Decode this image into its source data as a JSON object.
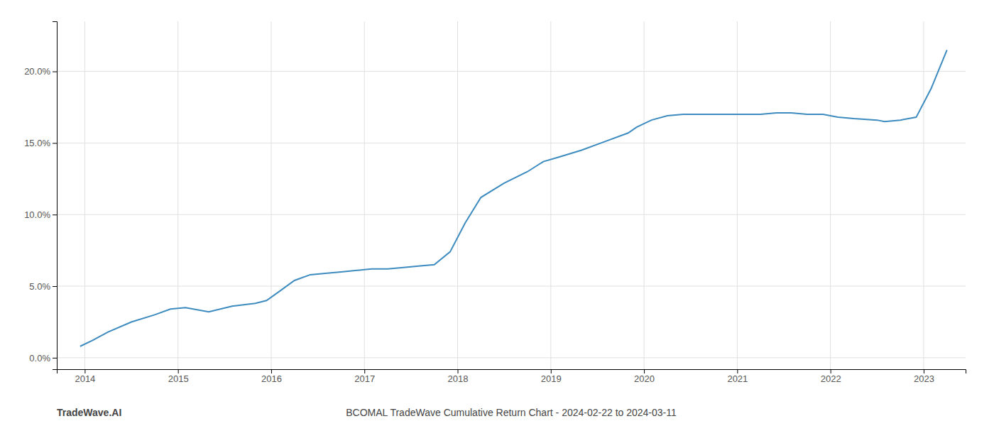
{
  "chart_data": {
    "type": "line",
    "title": "BCOMAL TradeWave Cumulative Return Chart - 2024-02-22 to 2024-03-11",
    "annotations": [
      "TradeWave.AI"
    ],
    "color": "#3d8bbf",
    "grid": true,
    "x": [
      2013.95,
      2014.08,
      2014.25,
      2014.5,
      2014.75,
      2014.92,
      2015.08,
      2015.33,
      2015.58,
      2015.83,
      2015.95,
      2016.08,
      2016.25,
      2016.42,
      2016.58,
      2016.75,
      2016.92,
      2017.08,
      2017.25,
      2017.42,
      2017.58,
      2017.75,
      2017.92,
      2018.08,
      2018.25,
      2018.5,
      2018.75,
      2018.92,
      2019.08,
      2019.33,
      2019.58,
      2019.83,
      2019.92,
      2020.08,
      2020.25,
      2020.42,
      2020.58,
      2020.75,
      2020.92,
      2021.08,
      2021.25,
      2021.42,
      2021.58,
      2021.75,
      2021.92,
      2022.08,
      2022.25,
      2022.5,
      2022.58,
      2022.75,
      2022.92,
      2023.08,
      2023.25
    ],
    "values": [
      0.008,
      0.012,
      0.018,
      0.025,
      0.03,
      0.034,
      0.035,
      0.032,
      0.036,
      0.038,
      0.04,
      0.046,
      0.054,
      0.058,
      0.059,
      0.06,
      0.061,
      0.062,
      0.062,
      0.063,
      0.064,
      0.065,
      0.074,
      0.094,
      0.112,
      0.122,
      0.13,
      0.137,
      0.14,
      0.145,
      0.151,
      0.157,
      0.161,
      0.166,
      0.169,
      0.17,
      0.17,
      0.17,
      0.17,
      0.17,
      0.17,
      0.171,
      0.171,
      0.17,
      0.17,
      0.168,
      0.167,
      0.166,
      0.165,
      0.166,
      0.168,
      0.188,
      0.215
    ],
    "xlim": [
      2013.7,
      2023.45
    ],
    "ylim": [
      -0.008,
      0.235
    ],
    "xticks": [
      2014,
      2015,
      2016,
      2017,
      2018,
      2019,
      2020,
      2021,
      2022,
      2023
    ],
    "yticks": [
      {
        "value": 0.0,
        "label": "0.0%"
      },
      {
        "value": 0.05,
        "label": "5.0%"
      },
      {
        "value": 0.1,
        "label": "10.0%"
      },
      {
        "value": 0.15,
        "label": "15.0%"
      },
      {
        "value": 0.2,
        "label": "20.0%"
      }
    ]
  }
}
